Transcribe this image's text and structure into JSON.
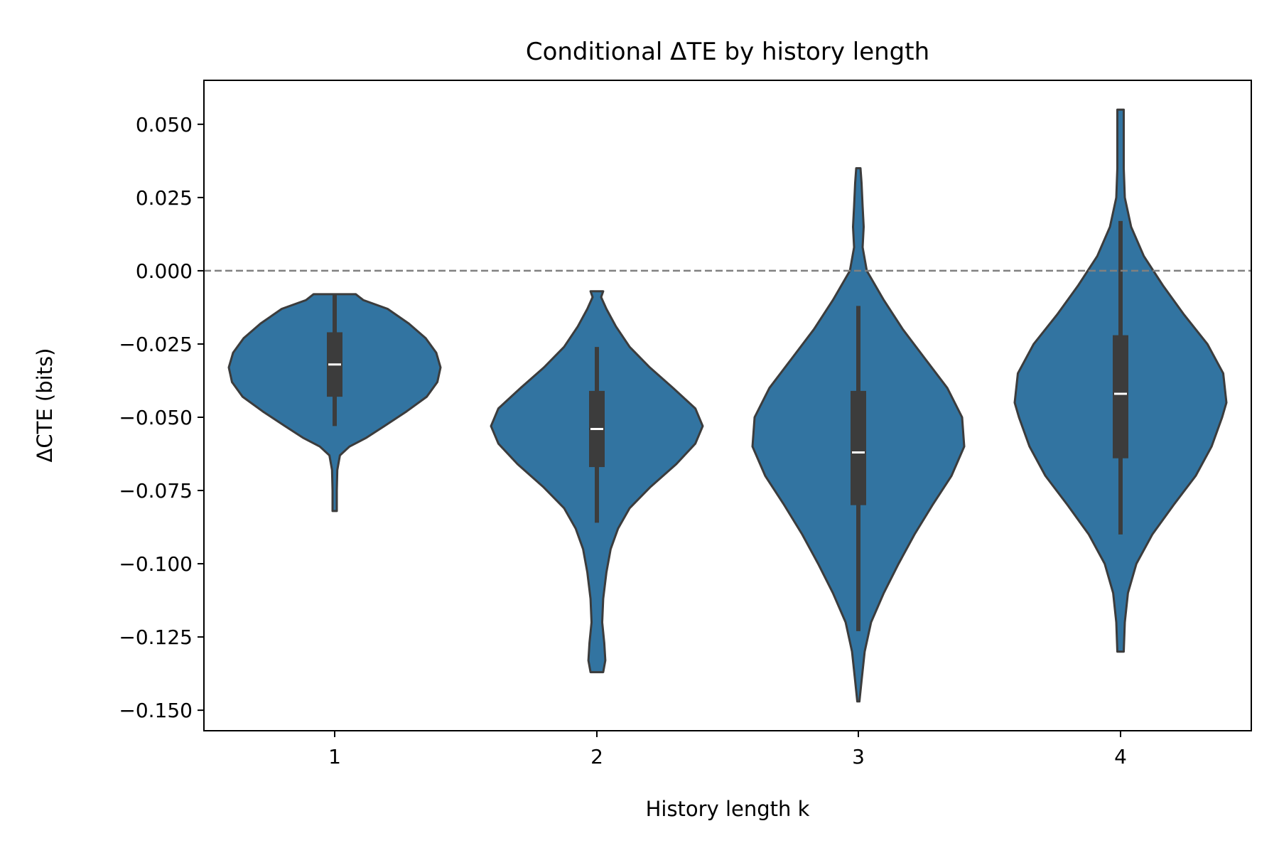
{
  "chart_data": {
    "type": "violin",
    "title": "Conditional ΔTE by history length",
    "xlabel": "History length k",
    "ylabel": "ΔCTE (bits)",
    "categories": [
      "1",
      "2",
      "3",
      "4"
    ],
    "ylim": [
      -0.157,
      0.065
    ],
    "yticks": [
      0.05,
      0.025,
      0.0,
      -0.025,
      -0.05,
      -0.075,
      -0.1,
      -0.125,
      -0.15
    ],
    "ytick_labels": [
      "0.050",
      "0.025",
      "0.000",
      "−0.025",
      "−0.050",
      "−0.075",
      "−0.100",
      "−0.125",
      "−0.150"
    ],
    "reference_line": {
      "y": 0.0,
      "style": "dashed",
      "color": "#808080"
    },
    "fill_color": "#3274a1",
    "edge_color": "#3c3c3c",
    "grid": false,
    "series": [
      {
        "category": "1",
        "min": -0.082,
        "max": -0.008,
        "q1": -0.043,
        "median": -0.032,
        "q3": -0.021,
        "whisker_low": -0.053,
        "whisker_high": -0.008,
        "density": [
          [
            -0.082,
            0.02
          ],
          [
            -0.075,
            0.02
          ],
          [
            -0.068,
            0.025
          ],
          [
            -0.063,
            0.05
          ],
          [
            -0.06,
            0.14
          ],
          [
            -0.057,
            0.3
          ],
          [
            -0.053,
            0.47
          ],
          [
            -0.048,
            0.68
          ],
          [
            -0.043,
            0.87
          ],
          [
            -0.038,
            0.97
          ],
          [
            -0.033,
            1.0
          ],
          [
            -0.028,
            0.96
          ],
          [
            -0.023,
            0.86
          ],
          [
            -0.018,
            0.7
          ],
          [
            -0.013,
            0.5
          ],
          [
            -0.01,
            0.27
          ],
          [
            -0.008,
            0.2
          ]
        ]
      },
      {
        "category": "2",
        "min": -0.137,
        "max": -0.007,
        "q1": -0.067,
        "median": -0.054,
        "q3": -0.041,
        "whisker_low": -0.086,
        "whisker_high": -0.026,
        "density": [
          [
            -0.137,
            0.06
          ],
          [
            -0.133,
            0.08
          ],
          [
            -0.127,
            0.07
          ],
          [
            -0.12,
            0.05
          ],
          [
            -0.112,
            0.06
          ],
          [
            -0.103,
            0.09
          ],
          [
            -0.095,
            0.13
          ],
          [
            -0.088,
            0.2
          ],
          [
            -0.081,
            0.31
          ],
          [
            -0.074,
            0.5
          ],
          [
            -0.066,
            0.75
          ],
          [
            -0.059,
            0.93
          ],
          [
            -0.053,
            1.0
          ],
          [
            -0.047,
            0.93
          ],
          [
            -0.04,
            0.72
          ],
          [
            -0.033,
            0.5
          ],
          [
            -0.026,
            0.31
          ],
          [
            -0.019,
            0.18
          ],
          [
            -0.013,
            0.09
          ],
          [
            -0.009,
            0.04
          ],
          [
            -0.007,
            0.06
          ]
        ]
      },
      {
        "category": "3",
        "min": -0.147,
        "max": 0.035,
        "q1": -0.08,
        "median": -0.062,
        "q3": -0.041,
        "whisker_low": -0.123,
        "whisker_high": -0.012,
        "density": [
          [
            -0.147,
            0.01
          ],
          [
            -0.14,
            0.03
          ],
          [
            -0.13,
            0.06
          ],
          [
            -0.12,
            0.12
          ],
          [
            -0.11,
            0.24
          ],
          [
            -0.1,
            0.38
          ],
          [
            -0.09,
            0.53
          ],
          [
            -0.08,
            0.7
          ],
          [
            -0.07,
            0.88
          ],
          [
            -0.06,
            1.0
          ],
          [
            -0.05,
            0.98
          ],
          [
            -0.04,
            0.84
          ],
          [
            -0.03,
            0.63
          ],
          [
            -0.02,
            0.42
          ],
          [
            -0.01,
            0.24
          ],
          [
            0.0,
            0.08
          ],
          [
            0.008,
            0.04
          ],
          [
            0.015,
            0.05
          ],
          [
            0.022,
            0.04
          ],
          [
            0.03,
            0.03
          ],
          [
            0.035,
            0.02
          ]
        ]
      },
      {
        "category": "4",
        "min": -0.13,
        "max": 0.055,
        "q1": -0.064,
        "median": -0.042,
        "q3": -0.022,
        "whisker_low": -0.09,
        "whisker_high": 0.017,
        "density": [
          [
            -0.13,
            0.03
          ],
          [
            -0.12,
            0.04
          ],
          [
            -0.11,
            0.07
          ],
          [
            -0.1,
            0.15
          ],
          [
            -0.09,
            0.3
          ],
          [
            -0.08,
            0.5
          ],
          [
            -0.07,
            0.71
          ],
          [
            -0.06,
            0.86
          ],
          [
            -0.05,
            0.96
          ],
          [
            -0.045,
            1.0
          ],
          [
            -0.035,
            0.97
          ],
          [
            -0.025,
            0.82
          ],
          [
            -0.015,
            0.6
          ],
          [
            -0.005,
            0.4
          ],
          [
            0.005,
            0.22
          ],
          [
            0.015,
            0.1
          ],
          [
            0.025,
            0.04
          ],
          [
            0.035,
            0.03
          ],
          [
            0.045,
            0.03
          ],
          [
            0.055,
            0.03
          ]
        ]
      }
    ]
  }
}
